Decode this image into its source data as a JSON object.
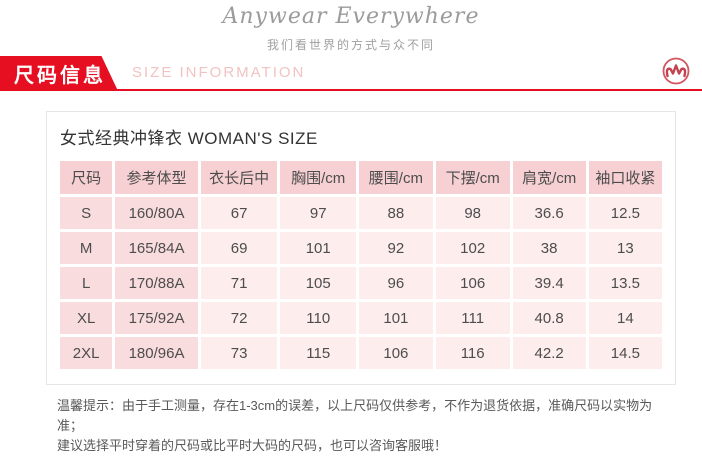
{
  "brand": {
    "name": "Anywear Everywhere",
    "tagline": "我们看世界的方式与众不同",
    "logo_letter": "M"
  },
  "section_header": {
    "title_cn": "尺码信息",
    "title_en": "SIZE INFORMATION",
    "accent_color": "#e60f21"
  },
  "content": {
    "title": "女式经典冲锋衣 WOMAN'S SIZE"
  },
  "chart_data": {
    "type": "table",
    "title": "女式经典冲锋衣 WOMAN'S SIZE",
    "columns": [
      "尺码",
      "参考体型",
      "衣长后中",
      "胸围/cm",
      "腰围/cm",
      "下摆/cm",
      "肩宽/cm",
      "袖口收紧"
    ],
    "rows": [
      [
        "S",
        "160/80A",
        "67",
        "97",
        "88",
        "98",
        "36.6",
        "12.5"
      ],
      [
        "M",
        "165/84A",
        "69",
        "101",
        "92",
        "102",
        "38",
        "13"
      ],
      [
        "L",
        "170/88A",
        "71",
        "105",
        "96",
        "106",
        "39.4",
        "13.5"
      ],
      [
        "XL",
        "175/92A",
        "72",
        "110",
        "101",
        "111",
        "40.8",
        "14"
      ],
      [
        "2XL",
        "180/96A",
        "73",
        "115",
        "106",
        "116",
        "42.2",
        "14.5"
      ]
    ],
    "colors": {
      "header_bg": "#f6d0d2",
      "side_column_bg": "#f9dcdd",
      "cell_bg": "#fdeded"
    }
  },
  "note": {
    "line1": "温馨提示：由于手工测量，存在1-3cm的误差，以上尺码仅供参考，不作为退货依据，准确尺码以实物为准；",
    "line2": "建议选择平时穿着的尺码或比平时大码的尺码，也可以咨询客服哦！"
  }
}
